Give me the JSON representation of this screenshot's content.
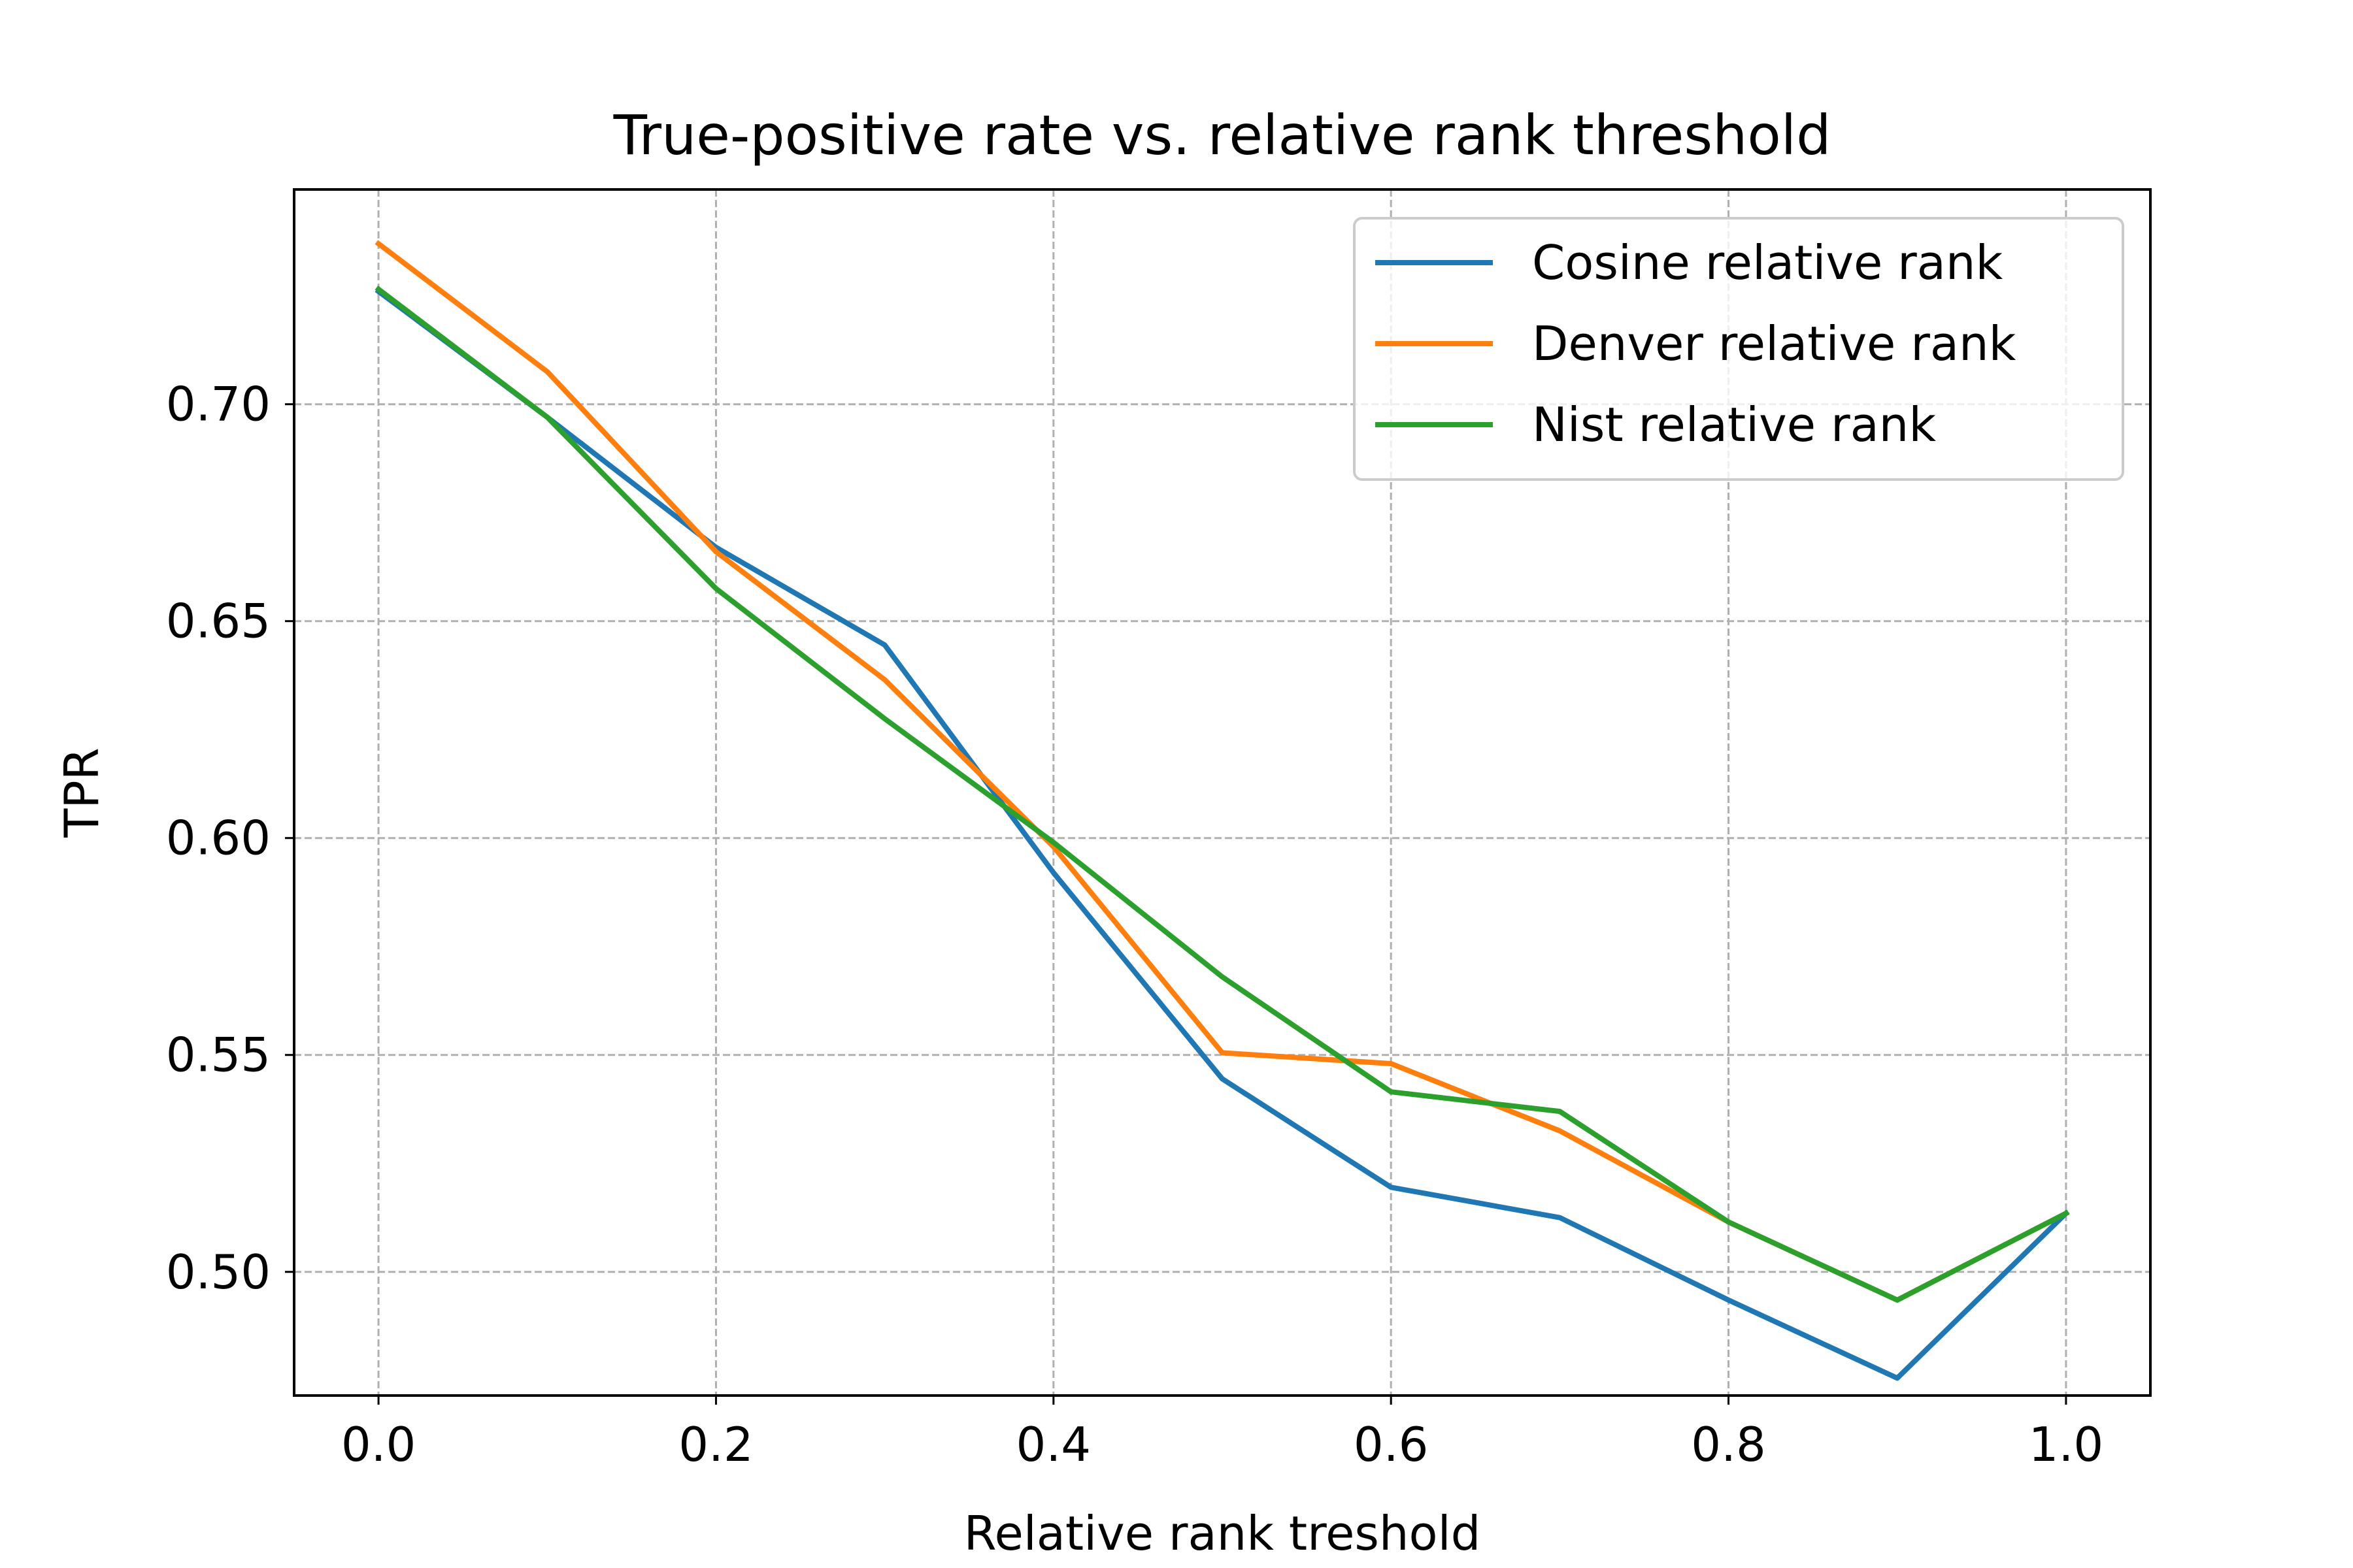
{
  "chart_data": {
    "type": "line",
    "title": "True-positive rate vs. relative rank threshold",
    "xlabel": "Relative rank treshold",
    "ylabel": "TPR",
    "x": [
      0.0,
      0.1,
      0.2,
      0.3,
      0.4,
      0.5,
      0.6,
      0.7,
      0.8,
      0.9,
      1.0
    ],
    "series": [
      {
        "name": "Cosine relative rank",
        "color": "#1f77b4",
        "values": [
          0.726,
          0.697,
          0.667,
          0.6445,
          0.592,
          0.5445,
          0.5195,
          0.5125,
          0.4935,
          0.4755,
          0.5135
        ]
      },
      {
        "name": "Denver relative rank",
        "color": "#ff7f0e",
        "values": [
          0.737,
          0.7075,
          0.666,
          0.6365,
          0.598,
          0.5505,
          0.548,
          0.5325,
          0.5115,
          0.4935,
          0.5135
        ]
      },
      {
        "name": "Nist relative rank",
        "color": "#2ca02c",
        "values": [
          0.7265,
          0.697,
          0.6575,
          0.6275,
          0.599,
          0.568,
          0.5415,
          0.537,
          0.5115,
          0.4935,
          0.5135
        ]
      }
    ],
    "xlim": [
      -0.05,
      1.05
    ],
    "ylim": [
      0.4715,
      0.7495
    ],
    "xticks": [
      0.0,
      0.2,
      0.4,
      0.6,
      0.8,
      1.0
    ],
    "xtick_labels": [
      "0.0",
      "0.2",
      "0.4",
      "0.6",
      "0.8",
      "1.0"
    ],
    "yticks": [
      0.5,
      0.55,
      0.6,
      0.65,
      0.7
    ],
    "ytick_labels": [
      "0.50",
      "0.55",
      "0.60",
      "0.65",
      "0.70"
    ],
    "grid": true,
    "legend_position": "top-right"
  }
}
